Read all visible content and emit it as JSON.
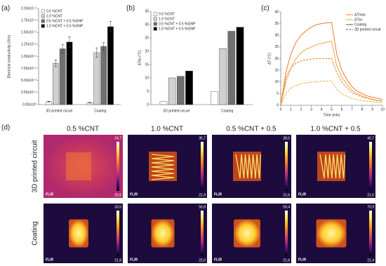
{
  "chart_data": [
    {
      "type": "bar",
      "label": "(a)",
      "y_label": "Electrical conductivity (S/m)",
      "categories": [
        "3D printed circuit",
        "Coating"
      ],
      "series": [
        {
          "name": "0.5 %CNT",
          "color": "#ffffff",
          "values": [
            0.0006,
            0.0004
          ],
          "errors": [
            0.0001,
            0.0001
          ]
        },
        {
          "name": "1.0 %CNT",
          "color": "#d0d0d0",
          "values": [
            0.0086,
            0.0108
          ],
          "errors": [
            0.0007,
            0.001
          ]
        },
        {
          "name": "0.5 %CNT + 0.5 %GNP",
          "color": "#707070",
          "values": [
            0.0116,
            0.0121
          ],
          "errors": [
            0.0009,
            0.0008
          ]
        },
        {
          "name": "1.0 %CNT + 0.5 %GNP",
          "color": "#000000",
          "values": [
            0.013,
            0.0162
          ],
          "errors": [
            0.0011,
            0.0011
          ]
        }
      ],
      "ylim": [
        0,
        0.02
      ],
      "yticks": [
        {
          "value": 0,
          "label": "0.00x10⁰"
        },
        {
          "value": 0.0025,
          "label": "2.50x10⁻³"
        },
        {
          "value": 0.005,
          "label": "5.00x10⁻³"
        },
        {
          "value": 0.0075,
          "label": "7.50x10⁻³"
        },
        {
          "value": 0.01,
          "label": "1.00x10⁻²"
        },
        {
          "value": 0.0125,
          "label": "1.25x10⁻²"
        },
        {
          "value": 0.015,
          "label": "1.50x10⁻²"
        },
        {
          "value": 0.0175,
          "label": "1.75x10⁻²"
        },
        {
          "value": 0.02,
          "label": "2.00x10⁻²"
        }
      ]
    },
    {
      "type": "bar",
      "label": "(b)",
      "y_label": "ΔTav (°C)",
      "categories": [
        "3D printed circuit",
        "Coating"
      ],
      "series": [
        {
          "name": "0.5 %CNT",
          "color": "#ffffff",
          "values": [
            1.1,
            4.8
          ]
        },
        {
          "name": "1.0 %CNT",
          "color": "#d0d0d0",
          "values": [
            10,
            21
          ]
        },
        {
          "name": "0.5 %CNT + 0.5 %GNP",
          "color": "#707070",
          "values": [
            10.6,
            27.5
          ]
        },
        {
          "name": "1.0 %CNT + 0.5 %GNP",
          "color": "#000000",
          "values": [
            12.6,
            29
          ]
        }
      ],
      "ylim": [
        0,
        35
      ],
      "yticks": [
        0,
        5,
        10,
        15,
        20,
        25,
        30,
        35
      ]
    },
    {
      "type": "line",
      "label": "(c)",
      "y_label": "ΔT (°C)",
      "x_label": "Time (min)",
      "x": [
        0,
        0.5,
        1,
        1.5,
        2,
        2.5,
        3,
        3.5,
        4,
        4.5,
        5,
        5.5,
        6,
        6.5,
        7,
        7.5,
        8,
        8.5,
        9,
        9.5,
        10
      ],
      "series": [
        {
          "color": "#ed7d31",
          "dash": false,
          "values": [
            0,
            14,
            22,
            27,
            30,
            32,
            33.5,
            34.5,
            35,
            35.3,
            35.5,
            22,
            15,
            11,
            8,
            6,
            5,
            4,
            3.5,
            3,
            2.5
          ]
        },
        {
          "color": "#f4a640",
          "dash": false,
          "values": [
            0,
            10,
            16,
            20,
            22.5,
            24,
            25,
            26,
            26.5,
            27,
            27.5,
            17,
            12,
            9,
            6.5,
            5,
            4,
            3.2,
            2.6,
            2.2,
            1.8
          ]
        },
        {
          "color": "#ed7d31",
          "dash": true,
          "values": [
            0,
            12,
            16,
            18,
            19,
            19.5,
            19.8,
            20,
            20,
            20,
            20,
            14,
            10,
            7.5,
            5.5,
            4.5,
            3.5,
            3,
            2.5,
            2,
            1.8
          ]
        },
        {
          "color": "#f4a640",
          "dash": true,
          "values": [
            0,
            5,
            7.5,
            8.5,
            9.2,
            9.6,
            9.9,
            10.1,
            10.3,
            10.4,
            10.5,
            7,
            5,
            3.8,
            3,
            2.4,
            2,
            1.7,
            1.5,
            1.3,
            1.1
          ]
        }
      ],
      "legend": {
        "colors": [
          {
            "name": "ΔTmax",
            "color": "#ed7d31"
          },
          {
            "name": "ΔTav",
            "color": "#f4a640"
          }
        ],
        "styles": [
          {
            "name": "Coating",
            "dash": false
          },
          {
            "name": "3D printed circuit",
            "dash": true
          }
        ]
      },
      "xlim": [
        0,
        10
      ],
      "xticks": [
        0,
        1,
        2,
        3,
        4,
        5,
        6,
        7,
        8,
        9,
        10
      ],
      "ylim": [
        0,
        40
      ],
      "yticks": [
        0,
        5,
        10,
        15,
        20,
        25,
        30,
        35,
        40
      ]
    }
  ],
  "thermal_images": {
    "label": "(d)",
    "logo": "FLIR",
    "columns": [
      "0.5 %CNT",
      "1.0 %CNT",
      "0.5 %CNT + 0.5",
      "1.0 %CNT + 0.5"
    ],
    "rows": [
      {
        "label": "3D printed circuit",
        "scales": [
          {
            "max": "24,7",
            "min": "20,6"
          },
          {
            "max": "35,7",
            "min": "21,9"
          },
          {
            "max": "38,5",
            "min": "21,6"
          },
          {
            "max": "40,7",
            "min": "21,6"
          }
        ]
      },
      {
        "label": "Coating",
        "scales": [
          {
            "max": "33,6",
            "min": "21,8"
          },
          {
            "max": "56,8",
            "min": "22,0"
          },
          {
            "max": "59,4",
            "min": "21,6"
          },
          {
            "max": "70,9",
            "min": "21,4"
          }
        ]
      }
    ]
  }
}
